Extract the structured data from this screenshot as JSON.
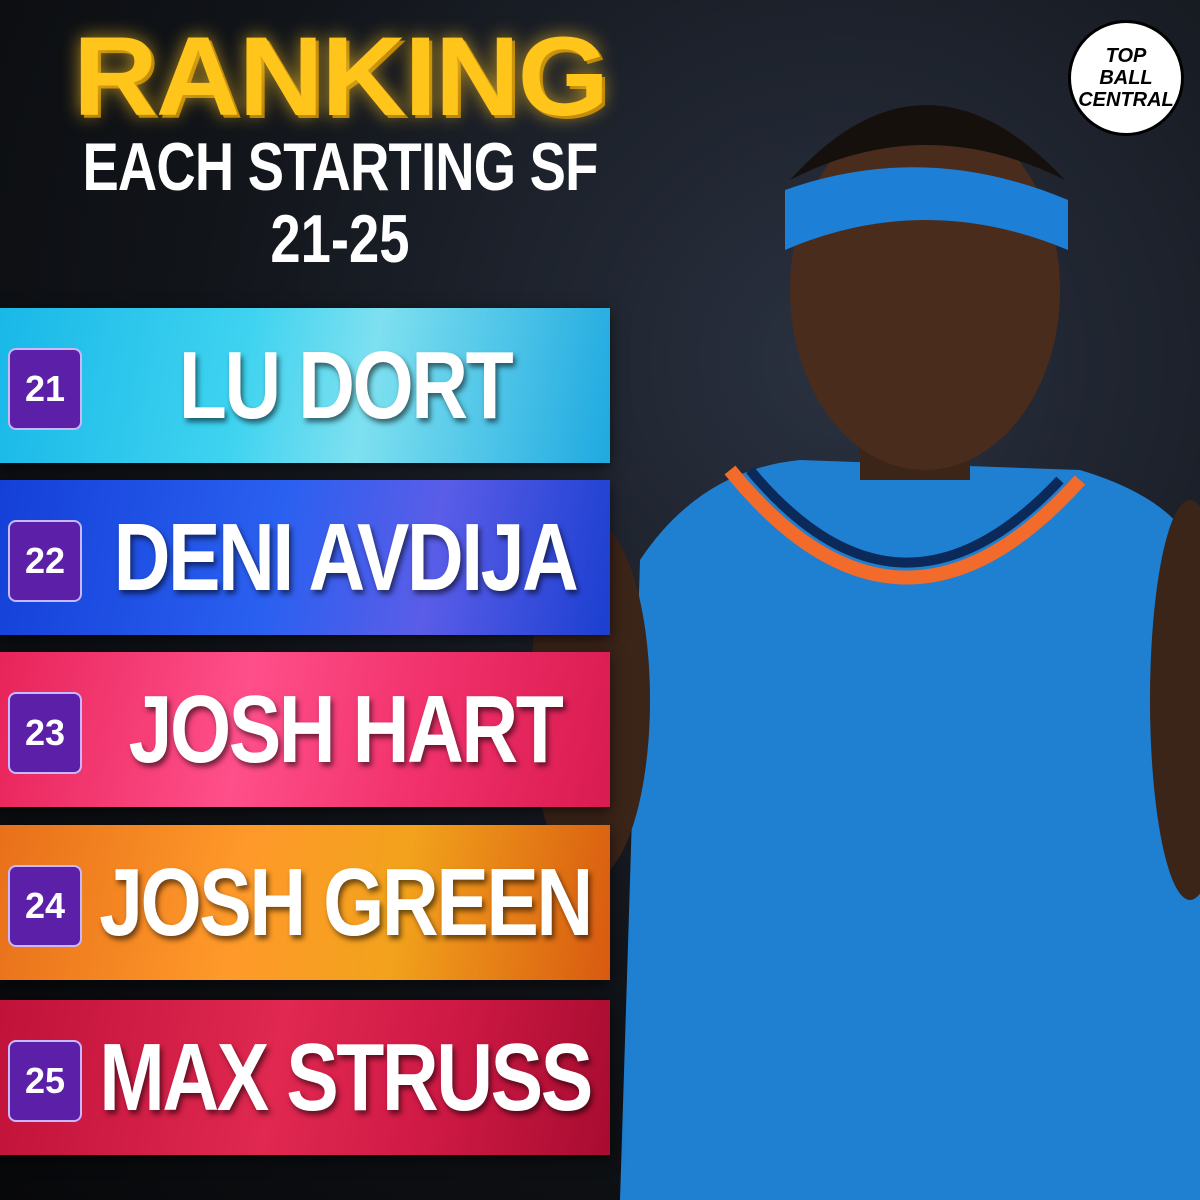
{
  "header": {
    "title": "RANKING",
    "subtitle": "EACH STARTING SF",
    "range": "21-25"
  },
  "logo": {
    "lines": [
      "TOP",
      "BALL",
      "CENTRAL"
    ]
  },
  "rankings": [
    {
      "rank": 21,
      "name": "LU DORT"
    },
    {
      "rank": 22,
      "name": "DENI AVDIJA"
    },
    {
      "rank": 23,
      "name": "JOSH HART"
    },
    {
      "rank": 24,
      "name": "JOSH GREEN"
    },
    {
      "rank": 25,
      "name": "MAX STRUSS"
    }
  ]
}
